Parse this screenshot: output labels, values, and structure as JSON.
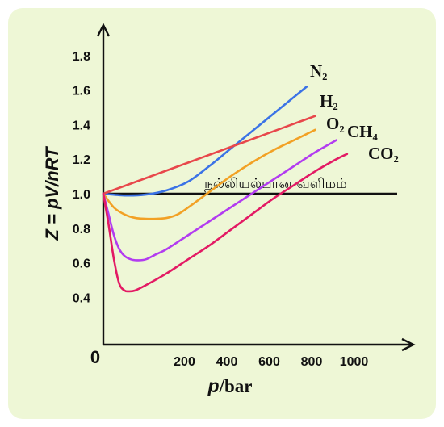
{
  "chart_data": {
    "type": "line",
    "xlabel_parts": [
      "p",
      "/bar"
    ],
    "ylabel": "Z = pV/nRT",
    "origin_label": "0",
    "x_ticks": [
      200,
      400,
      600,
      800,
      1000
    ],
    "y_ticks": [
      0.4,
      0.6,
      0.8,
      1.0,
      1.2,
      1.4,
      1.6,
      1.8
    ],
    "y_tick_labels": [
      "0.4",
      "0.6",
      "0.8",
      "1.0",
      "1.2",
      "1.4",
      "1.6",
      "1.8"
    ],
    "xlim": [
      0,
      1120
    ],
    "ylim": [
      0.2,
      1.95
    ],
    "grid": false,
    "ideal_gas": {
      "name": "நல்லியல்பான வளிமம்",
      "y": 1.0,
      "x_range": [
        0,
        1100
      ],
      "color": "#111111"
    },
    "series": [
      {
        "name": "N₂",
        "color": "#3b73e6",
        "x": [
          0,
          100,
          200,
          300,
          400,
          500,
          600,
          700,
          800,
          900,
          960
        ],
        "y": [
          1.0,
          0.99,
          0.995,
          1.02,
          1.07,
          1.16,
          1.26,
          1.36,
          1.46,
          1.56,
          1.62
        ]
      },
      {
        "name": "H₂",
        "color": "#e8474b",
        "x": [
          0,
          200,
          400,
          600,
          800,
          1000
        ],
        "y": [
          1.0,
          1.09,
          1.18,
          1.27,
          1.36,
          1.45
        ]
      },
      {
        "name": "O₂",
        "color": "#f2a125",
        "x": [
          0,
          50,
          100,
          150,
          200,
          250,
          300,
          350,
          400,
          500,
          600,
          700,
          800,
          900,
          1000
        ],
        "y": [
          1.0,
          0.92,
          0.88,
          0.86,
          0.855,
          0.855,
          0.86,
          0.88,
          0.92,
          1.01,
          1.1,
          1.18,
          1.25,
          1.31,
          1.37
        ]
      },
      {
        "name": "CH₄",
        "color": "#b23cf0",
        "x": [
          0,
          25,
          50,
          75,
          100,
          130,
          160,
          200,
          250,
          300,
          400,
          500,
          600,
          700,
          800,
          900,
          1000,
          1100
        ],
        "y": [
          1.0,
          0.88,
          0.76,
          0.68,
          0.64,
          0.62,
          0.615,
          0.62,
          0.65,
          0.68,
          0.76,
          0.84,
          0.92,
          1.0,
          1.08,
          1.16,
          1.24,
          1.31
        ]
      },
      {
        "name": "CO₂",
        "color": "#e31a64",
        "x": [
          0,
          25,
          50,
          75,
          100,
          120,
          150,
          200,
          300,
          400,
          500,
          600,
          700,
          800,
          900,
          1000,
          1100,
          1150
        ],
        "y": [
          1.0,
          0.82,
          0.62,
          0.48,
          0.44,
          0.435,
          0.44,
          0.47,
          0.54,
          0.62,
          0.7,
          0.79,
          0.88,
          0.97,
          1.05,
          1.13,
          1.2,
          1.23
        ]
      }
    ]
  }
}
